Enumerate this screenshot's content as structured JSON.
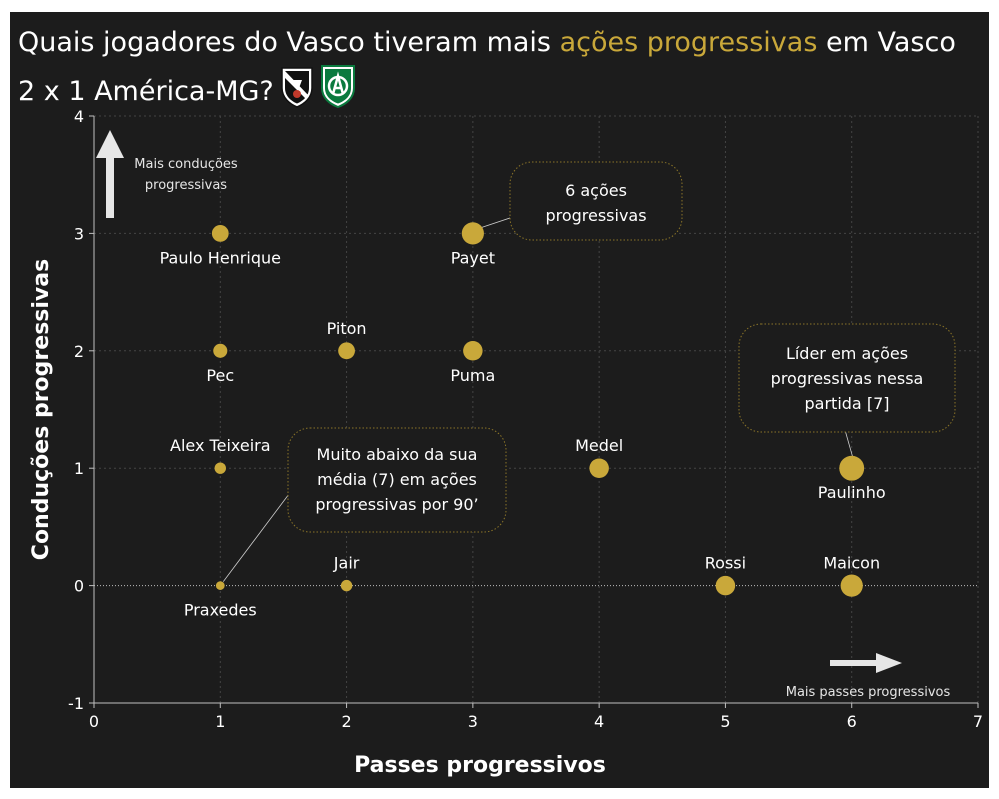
{
  "title": {
    "part1": "Quais jogadores do Vasco tiveram mais ",
    "highlight": "ações progressivas",
    "part2": " em Vasco 2 x 1 América-MG?"
  },
  "colors": {
    "background": "#1c1c1c",
    "accent": "#c9a83a",
    "text": "#ffffff",
    "america_green": "#0a7a3e"
  },
  "icons": [
    "vasco-crest-icon",
    "america-mg-crest-icon",
    "arrow-up-icon",
    "arrow-right-icon"
  ],
  "chart_data": {
    "type": "scatter",
    "xlabel": "Passes progressivos",
    "ylabel": "Conduções progressivas",
    "xlim": [
      0,
      7
    ],
    "ylim": [
      -1,
      4
    ],
    "xticks": [
      0,
      1,
      2,
      3,
      4,
      5,
      6,
      7
    ],
    "yticks": [
      -1,
      0,
      1,
      2,
      3,
      4
    ],
    "grid": true,
    "size_encoding": "total ações progressivas (passes + conduções)",
    "points": [
      {
        "name": "Paulo Henrique",
        "x": 1,
        "y": 3,
        "label_pos": "below"
      },
      {
        "name": "Payet",
        "x": 3,
        "y": 3,
        "label_pos": "below"
      },
      {
        "name": "Piton",
        "x": 2,
        "y": 2,
        "label_pos": "above"
      },
      {
        "name": "Pec",
        "x": 1,
        "y": 2,
        "label_pos": "below"
      },
      {
        "name": "Puma",
        "x": 3,
        "y": 2,
        "label_pos": "below"
      },
      {
        "name": "Alex Teixeira",
        "x": 1,
        "y": 1,
        "label_pos": "above"
      },
      {
        "name": "Medel",
        "x": 4,
        "y": 1,
        "label_pos": "above"
      },
      {
        "name": "Paulinho",
        "x": 6,
        "y": 1,
        "label_pos": "below"
      },
      {
        "name": "Jair",
        "x": 2,
        "y": 0,
        "label_pos": "above"
      },
      {
        "name": "Praxedes",
        "x": 1,
        "y": 0,
        "label_pos": "below"
      },
      {
        "name": "Rossi",
        "x": 5,
        "y": 0,
        "label_pos": "above"
      },
      {
        "name": "Maicon",
        "x": 6,
        "y": 0,
        "label_pos": "above"
      }
    ],
    "annotations": [
      {
        "id": "payet",
        "lines": [
          "6 ações",
          "progressivas"
        ],
        "target": [
          3,
          3
        ]
      },
      {
        "id": "paulinho",
        "lines": [
          "Líder em ações",
          "progressivas nessa",
          "partida [7]"
        ],
        "target": [
          6,
          1
        ]
      },
      {
        "id": "praxedes",
        "lines": [
          "Muito abaixo da sua",
          "média (7) em ações",
          "progressivas por 90’"
        ],
        "target": [
          1,
          0
        ]
      }
    ],
    "hints": {
      "up": [
        "Mais conduções",
        "progressivas"
      ],
      "right": "Mais passes progressivos"
    }
  }
}
